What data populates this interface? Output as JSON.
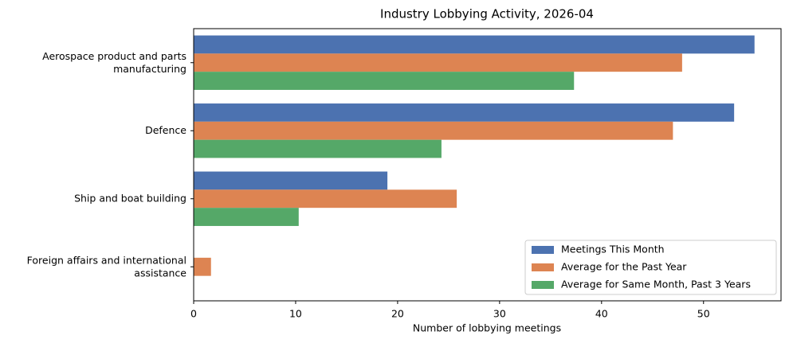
{
  "chart_data": {
    "type": "barh",
    "title": "Industry Lobbying Activity, 2026-04",
    "xlabel": "Number of lobbying meetings",
    "categories": [
      "Aerospace product and parts\nmanufacturing",
      "Defence",
      "Ship and boat building",
      "Foreign affairs and international\nassistance"
    ],
    "series": [
      {
        "name": "Meetings This Month",
        "color": "#4c72b0",
        "values": [
          55,
          53,
          19,
          0
        ]
      },
      {
        "name": "Average for the Past Year",
        "color": "#dd8452",
        "values": [
          47.9,
          47,
          25.8,
          1.7
        ]
      },
      {
        "name": "Average for Same Month, Past 3 Years",
        "color": "#55a868",
        "values": [
          37.3,
          24.3,
          10.3,
          0
        ]
      }
    ],
    "xlim": [
      0,
      57.6
    ],
    "xticks": [
      0,
      10,
      20,
      30,
      40,
      50
    ],
    "legend": "lower right"
  }
}
